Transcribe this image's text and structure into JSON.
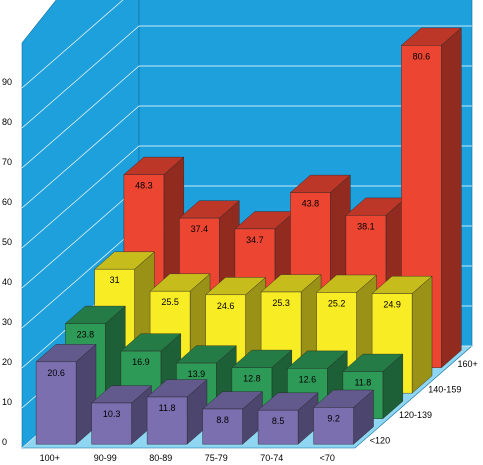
{
  "chart_data": {
    "type": "bar",
    "style": "3d-grouped-depth",
    "title": "",
    "xlabel": "",
    "ylabel": "",
    "ylim": [
      0,
      90
    ],
    "yticks": [
      0,
      10,
      20,
      30,
      40,
      50,
      60,
      70,
      80,
      90
    ],
    "grid": true,
    "categories": [
      "100+",
      "90-99",
      "80-89",
      "75-79",
      "70-74",
      "<70"
    ],
    "depth_labels": [
      "<120",
      "120-139",
      "140-159",
      "160+"
    ],
    "series": [
      {
        "name": "<120",
        "color": "#7b6fb0",
        "values": [
          20.6,
          10.3,
          11.8,
          8.8,
          8.5,
          9.2
        ]
      },
      {
        "name": "120-139",
        "color": "#2e9a57",
        "values": [
          23.8,
          16.9,
          13.9,
          12.8,
          12.6,
          11.8
        ]
      },
      {
        "name": "140-159",
        "color": "#f8ec24",
        "values": [
          31,
          25.5,
          24.6,
          25.3,
          25.2,
          24.9
        ]
      },
      {
        "name": "160+",
        "color": "#ec4532",
        "values": [
          48.3,
          37.4,
          34.7,
          43.8,
          38.1,
          80.6
        ]
      }
    ],
    "wall_color": "#1ea0dc",
    "floor_color": "#8fd6f2"
  }
}
